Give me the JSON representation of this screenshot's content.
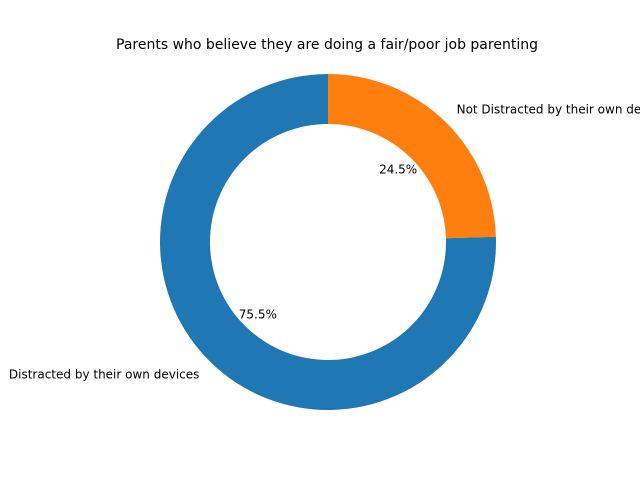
{
  "chart_data": {
    "type": "pie",
    "title": "Parents who believe they are doing a fair/poor job parenting",
    "donut": true,
    "start_angle_deg": 90,
    "direction": "counterclockwise",
    "slices": [
      {
        "label": "Distracted by their own devices",
        "value": 75.5,
        "pct_label": "75.5%",
        "color": "#1f77b4"
      },
      {
        "label": "Not Distracted by their own devices",
        "value": 24.5,
        "pct_label": "24.5%",
        "color": "#ff7f0e"
      }
    ]
  }
}
